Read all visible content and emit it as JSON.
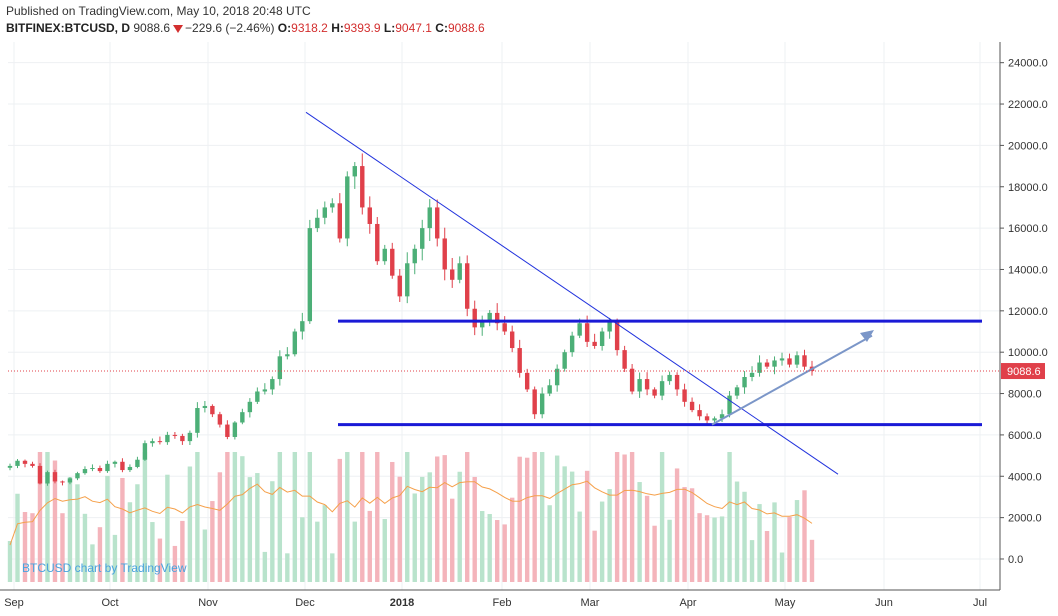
{
  "header": {
    "published": "Published on TradingView.com, May 10, 2018 20:48 UTC",
    "symbol": "BITFINEX:BTCUSD, D",
    "last": "9088.6",
    "change": "−229.6 (−2.46%)",
    "o_label": "O:",
    "o_value": "9318.2",
    "h_label": "H:",
    "h_value": "9393.9",
    "l_label": "L:",
    "l_value": "9047.1",
    "c_label": "C:",
    "c_value": "9088.6"
  },
  "watermark": "BTCUSD chart by TradingView",
  "colors": {
    "up": "#4caf77",
    "down": "#e0404a",
    "vol_up": "#b9e3cc",
    "vol_down": "#f4b4bb",
    "ma": "#f5a04a",
    "trend": "#2233dd",
    "arrow": "#7b96c8",
    "grid": "#eef0f3",
    "price_tag": "#e0404a"
  },
  "chart_data": {
    "type": "candlestick",
    "x_tick_labels": [
      "Sep",
      "Oct",
      "Nov",
      "Dec",
      "2018",
      "Feb",
      "Mar",
      "Apr",
      "May",
      "Jun",
      "Jul"
    ],
    "y_tick_labels": [
      "24000.0",
      "22000.0",
      "20000.0",
      "18000.0",
      "16000.0",
      "14000.0",
      "12000.0",
      "10000.0",
      "8000.0",
      "6000.0",
      "4000.0",
      "2000.0",
      "0.0"
    ],
    "ylim": [
      -1500,
      25000
    ],
    "last_price_label": "9088.6",
    "last_price": 9088.6,
    "daily_closes": [
      4500,
      4750,
      4600,
      4500,
      3650,
      4200,
      3750,
      3700,
      3900,
      4150,
      4350,
      4400,
      4250,
      4600,
      4700,
      4300,
      4450,
      4800,
      5600,
      5700,
      5650,
      6000,
      5950,
      5700,
      6100,
      7300,
      7400,
      7000,
      6500,
      5900,
      6600,
      7100,
      7600,
      8100,
      8200,
      8700,
      9800,
      9900,
      11000,
      11500,
      16000,
      16500,
      17000,
      17200,
      15500,
      18500,
      19000,
      17000,
      16200,
      14400,
      15000,
      13700,
      12700,
      14300,
      15000,
      16000,
      17000,
      15500,
      14000,
      13500,
      14300,
      12100,
      11200,
      11500,
      11900,
      11400,
      11000,
      10200,
      9000,
      8200,
      7000,
      8000,
      8400,
      9200,
      10000,
      10800,
      11400,
      10500,
      10300,
      11000,
      11500,
      10100,
      9200,
      8100,
      8700,
      8200,
      7900,
      8600,
      8900,
      8200,
      7600,
      7200,
      6900,
      6700,
      6800,
      7000,
      7900,
      8300,
      8800,
      9000,
      9500,
      9300,
      9600,
      9700,
      9400,
      9850,
      9300,
      9088.6
    ]
  },
  "volume_ma_label": ""
}
